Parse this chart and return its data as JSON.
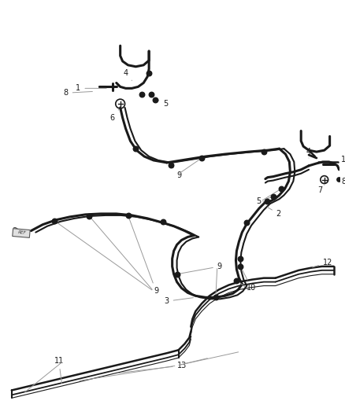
{
  "background": "#ffffff",
  "line_color": "#1a1a1a",
  "label_fontsize": 7.0,
  "leader_color": "#999999",
  "lw_main": 2.2,
  "lw_tube": 1.4,
  "lw_thin": 0.8
}
